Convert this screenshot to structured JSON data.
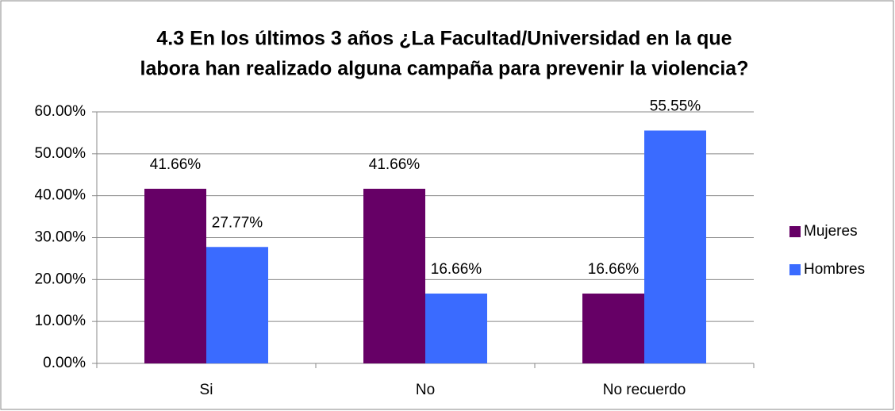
{
  "chart_data": {
    "type": "bar",
    "title": [
      "4.3 En los últimos 3 años ¿La Facultad/Universidad en la que",
      "labora han realizado alguna campaña para prevenir la violencia?"
    ],
    "categories": [
      "Si",
      "No",
      "No recuerdo"
    ],
    "series": [
      {
        "name": "Mujeres",
        "color": "#660066",
        "values": [
          41.66,
          41.66,
          16.66
        ],
        "value_labels": [
          "41.66%",
          "41.66%",
          "16.66%"
        ]
      },
      {
        "name": "Hombres",
        "color": "#3a6bff",
        "values": [
          27.77,
          16.66,
          55.55
        ],
        "value_labels": [
          "27.77%",
          "16.66%",
          "55.55%"
        ]
      }
    ],
    "ylim": [
      0,
      60
    ],
    "yticks": [
      {
        "value": 0,
        "label": "0.00%"
      },
      {
        "value": 10,
        "label": "10.00%"
      },
      {
        "value": 20,
        "label": "20.00%"
      },
      {
        "value": 30,
        "label": "30.00%"
      },
      {
        "value": 40,
        "label": "40.00%"
      },
      {
        "value": 50,
        "label": "50.00%"
      },
      {
        "value": 60,
        "label": "60.00%"
      }
    ],
    "grid": true,
    "legend": "right"
  }
}
